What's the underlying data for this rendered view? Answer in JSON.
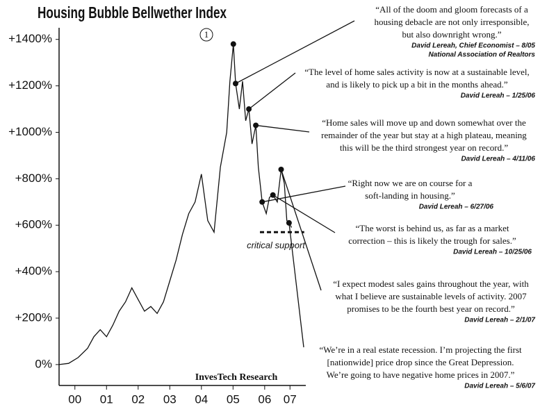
{
  "chart_data": {
    "type": "line",
    "title": "Housing Bubble Bellwether Index",
    "x": [
      0,
      0.3,
      0.6,
      0.9,
      1.1,
      1.3,
      1.5,
      1.7,
      1.9,
      2.1,
      2.3,
      2.5,
      2.7,
      2.9,
      3.1,
      3.3,
      3.5,
      3.7,
      3.9,
      4.1,
      4.3,
      4.5,
      4.7,
      4.9,
      5.1,
      5.3,
      5.4,
      5.51,
      5.58,
      5.7,
      5.8,
      5.9,
      6.0,
      6.1,
      6.22,
      6.3,
      6.42,
      6.55,
      6.65,
      6.76,
      6.9,
      7.02,
      7.12,
      7.2,
      7.27,
      7.35
    ],
    "values": [
      0,
      5,
      30,
      70,
      120,
      150,
      120,
      170,
      230,
      270,
      330,
      280,
      230,
      250,
      220,
      270,
      360,
      450,
      560,
      650,
      700,
      820,
      620,
      570,
      850,
      1000,
      1220,
      1380,
      1210,
      1100,
      1220,
      1050,
      1100,
      950,
      1030,
      850,
      700,
      650,
      720,
      730,
      700,
      840,
      780,
      620,
      610,
      590
    ],
    "color": "#111111",
    "xlim": [
      0,
      7.8
    ],
    "xticks": [
      {
        "value": 0.5,
        "label": "00"
      },
      {
        "value": 1.5,
        "label": "01"
      },
      {
        "value": 2.5,
        "label": "02"
      },
      {
        "value": 3.5,
        "label": "03"
      },
      {
        "value": 4.5,
        "label": "04"
      },
      {
        "value": 5.5,
        "label": "05"
      },
      {
        "value": 6.5,
        "label": "06"
      },
      {
        "value": 7.3,
        "label": "07"
      }
    ],
    "ylim": [
      -90,
      1450
    ],
    "yticks": [
      {
        "value": 0,
        "label": "0%"
      },
      {
        "value": 200,
        "label": "+200%"
      },
      {
        "value": 400,
        "label": "+400%"
      },
      {
        "value": 600,
        "label": "+600%"
      },
      {
        "value": 800,
        "label": "+800%"
      },
      {
        "value": 1000,
        "label": "+1000%"
      },
      {
        "value": 1200,
        "label": "+1200%"
      },
      {
        "value": 1400,
        "label": "+1400%"
      }
    ],
    "peak_marker": {
      "label": "1",
      "x": 5.51,
      "y": 1380
    },
    "support": {
      "label": "critical support",
      "value": 570,
      "x": [
        6.35,
        7.75
      ]
    },
    "credit": "InvesTech Research",
    "annotations": [
      {
        "x": 5.58,
        "y": 1210,
        "quote": [
          "“All of the doom and gloom forecasts of a",
          "housing debacle are not only irresponsible,",
          "but also downright wrong.”"
        ],
        "source": [
          "David Lereah, Chief Economist – 8/05",
          "National Association of Realtors"
        ]
      },
      {
        "x": 6.0,
        "y": 1100,
        "quote": [
          "“The level of home sales activity is now at a sustainable level,",
          "and is likely to pick up a bit in the months ahead.”"
        ],
        "source": [
          "David Lereah – 1/25/06"
        ]
      },
      {
        "x": 6.22,
        "y": 1030,
        "quote": [
          "“Home sales will move up and down somewhat over the",
          "remainder of the year but stay at a high plateau, meaning",
          "this will be the third strongest year on record.”"
        ],
        "source": [
          "David Lereah – 4/11/06"
        ]
      },
      {
        "x": 6.42,
        "y": 700,
        "quote": [
          "“Right now we are on course for a",
          "soft-landing in housing.”"
        ],
        "source": [
          "David Lereah – 6/27/06"
        ]
      },
      {
        "x": 6.76,
        "y": 730,
        "quote": [
          "“The worst is behind us, as far as a market",
          "correction – this is likely the trough for sales.”"
        ],
        "source": [
          "David Lereah – 10/25/06"
        ]
      },
      {
        "x": 7.02,
        "y": 840,
        "quote": [
          "“I expect modest sales gains throughout the year, with",
          "what I believe are sustainable levels of activity.  2007",
          "promises to be the fourth best year on record.”"
        ],
        "source": [
          "David Lereah – 2/1/07"
        ]
      },
      {
        "x": 7.27,
        "y": 610,
        "quote": [
          "“We’re in a real estate recession.  I’m projecting the first",
          "[nationwide] price drop since the Great Depression.",
          "We’re going to have negative home prices in 2007.”"
        ],
        "source": [
          "David Lereah – 5/6/07"
        ]
      }
    ]
  }
}
